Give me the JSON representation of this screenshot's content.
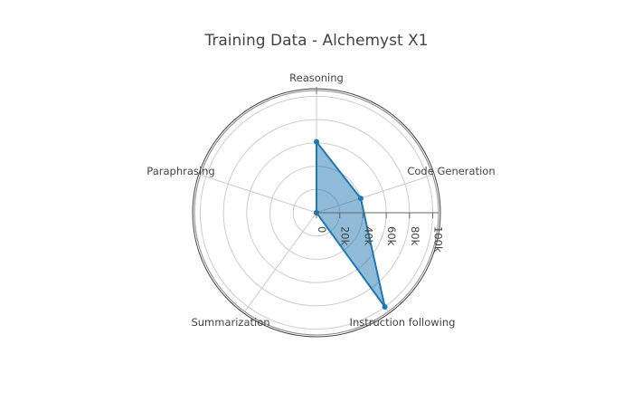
{
  "chart_data": {
    "type": "radar",
    "title": "Training Data - Alchemyst X1",
    "categories": [
      "Reasoning",
      "Code Generation",
      "Instruction following",
      "Summarization",
      "Paraphrasing"
    ],
    "series": [
      {
        "values": [
          61000,
          40000,
          100000,
          0,
          0
        ]
      }
    ],
    "r_range": [
      0,
      105000
    ],
    "r_ticks": [
      0,
      20000,
      40000,
      60000,
      80000,
      100000
    ],
    "r_tick_labels": [
      "0",
      "20k",
      "40k",
      "60k",
      "80k",
      "100k"
    ],
    "angular_direction": "clockwise",
    "start_category_position": "top",
    "grid": true,
    "legend": "none",
    "colors": {
      "line": "#1f77b4",
      "fill": "#1f77b4",
      "grid": "#cccccc",
      "outer_border": "#444444",
      "text": "#444444"
    }
  }
}
